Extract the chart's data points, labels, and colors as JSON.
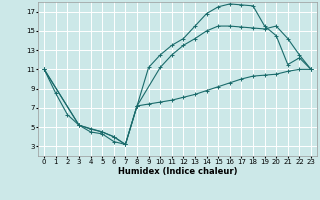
{
  "xlabel": "Humidex (Indice chaleur)",
  "bg_color": "#cce8e8",
  "grid_color": "#ffffff",
  "line_color": "#1a6b6b",
  "xlim": [
    -0.5,
    23.5
  ],
  "ylim": [
    2,
    18
  ],
  "xticks": [
    0,
    1,
    2,
    3,
    4,
    5,
    6,
    7,
    8,
    9,
    10,
    11,
    12,
    13,
    14,
    15,
    16,
    17,
    18,
    19,
    20,
    21,
    22,
    23
  ],
  "yticks": [
    3,
    5,
    7,
    9,
    11,
    13,
    15,
    17
  ],
  "line1_x": [
    0,
    1,
    2,
    3,
    4,
    5,
    6,
    7,
    8,
    9,
    10,
    11,
    12,
    13,
    14,
    15,
    16,
    17,
    18,
    19,
    20,
    21,
    22,
    23
  ],
  "line1_y": [
    11,
    8.5,
    6.3,
    5.2,
    4.5,
    4.3,
    3.5,
    3.2,
    7.2,
    7.4,
    7.6,
    7.8,
    8.1,
    8.4,
    8.8,
    9.2,
    9.6,
    10.0,
    10.3,
    10.4,
    10.5,
    10.8,
    11.0,
    11.0
  ],
  "line2_x": [
    0,
    3,
    4,
    5,
    6,
    7,
    8,
    9,
    10,
    11,
    12,
    13,
    14,
    15,
    16,
    17,
    18,
    19,
    20,
    21,
    22,
    23
  ],
  "line2_y": [
    11,
    5.2,
    4.8,
    4.5,
    4.0,
    3.2,
    7.2,
    11.2,
    12.5,
    13.5,
    14.2,
    15.5,
    16.8,
    17.5,
    17.8,
    17.7,
    17.6,
    15.5,
    14.5,
    11.5,
    12.2,
    11.0
  ],
  "line3_x": [
    0,
    3,
    5,
    6,
    7,
    8,
    10,
    11,
    12,
    13,
    14,
    15,
    16,
    17,
    18,
    19,
    20,
    21,
    22,
    23
  ],
  "line3_y": [
    11,
    5.2,
    4.5,
    4.0,
    3.2,
    7.2,
    11.2,
    12.5,
    13.5,
    14.2,
    15.0,
    15.5,
    15.5,
    15.4,
    15.3,
    15.2,
    15.5,
    14.2,
    12.5,
    11.0
  ]
}
